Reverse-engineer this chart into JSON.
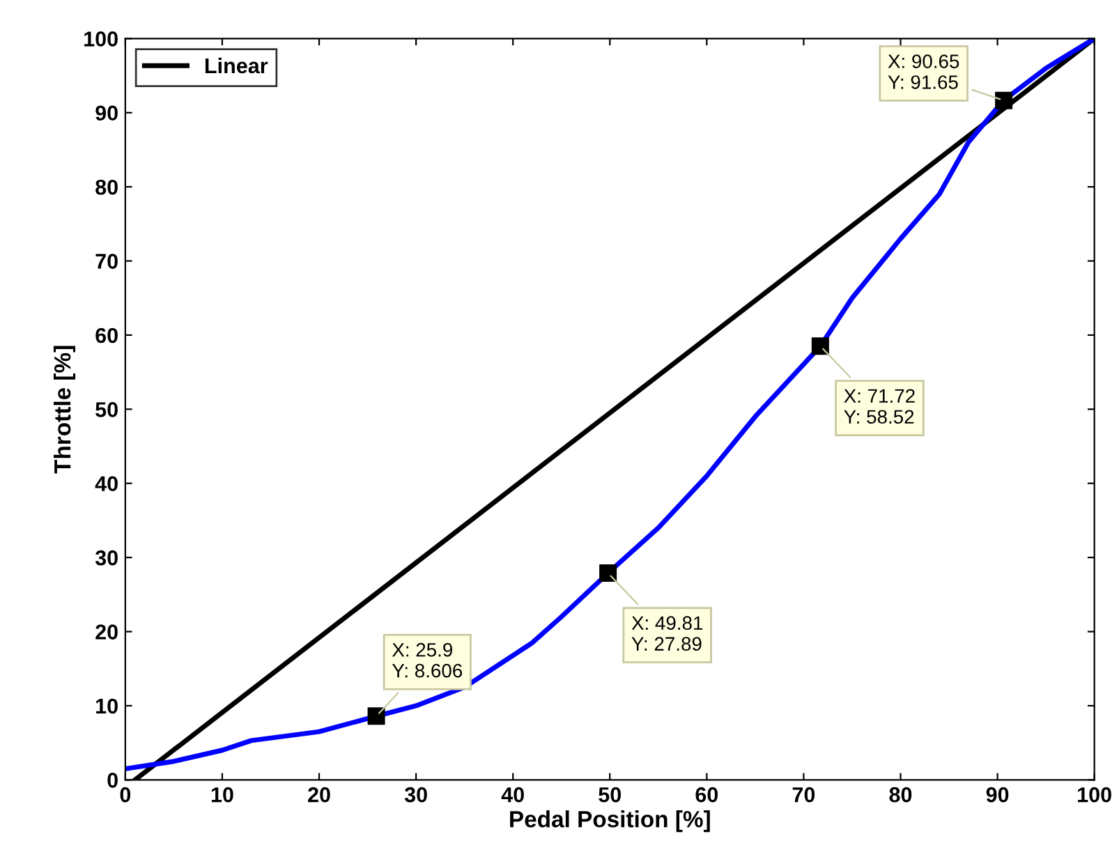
{
  "chart_data": {
    "type": "line",
    "xlabel": "Pedal Position [%]",
    "ylabel": "Throttle [%]",
    "xlim": [
      0,
      100
    ],
    "ylim": [
      0,
      100
    ],
    "xticks": [
      0,
      10,
      20,
      30,
      40,
      50,
      60,
      70,
      80,
      90,
      100
    ],
    "yticks": [
      0,
      10,
      20,
      30,
      40,
      50,
      60,
      70,
      80,
      90,
      100
    ],
    "grid": false,
    "legend": "top left",
    "marker": "none",
    "line_style": "solid",
    "series": [
      {
        "name": "Linear",
        "color": "#000000",
        "x": [
          1,
          100
        ],
        "values": [
          0,
          100
        ]
      },
      {
        "color": "#0000ff",
        "x": [
          0,
          5,
          10,
          13,
          20,
          25.9,
          30,
          35,
          42,
          45,
          49.81,
          55,
          60,
          65,
          71.72,
          75,
          80,
          84,
          87,
          90.65,
          95,
          100
        ],
        "values": [
          1.5,
          2.5,
          4,
          5.3,
          6.5,
          8.6,
          10,
          12.5,
          18.5,
          22,
          27.9,
          34,
          41,
          49,
          58.5,
          65,
          73,
          79,
          86,
          91.7,
          96,
          100
        ]
      }
    ],
    "annotations": [
      {
        "text": "X: 25.9\nY: 8.606",
        "x": 25.9,
        "y": 8.606
      },
      {
        "text": "X: 49.81\nY: 27.89",
        "x": 49.81,
        "y": 27.89
      },
      {
        "text": "X: 71.72\nY: 58.52",
        "x": 71.72,
        "y": 58.52
      },
      {
        "text": "X: 90.65\nY: 91.65",
        "x": 90.65,
        "y": 91.65
      }
    ]
  }
}
